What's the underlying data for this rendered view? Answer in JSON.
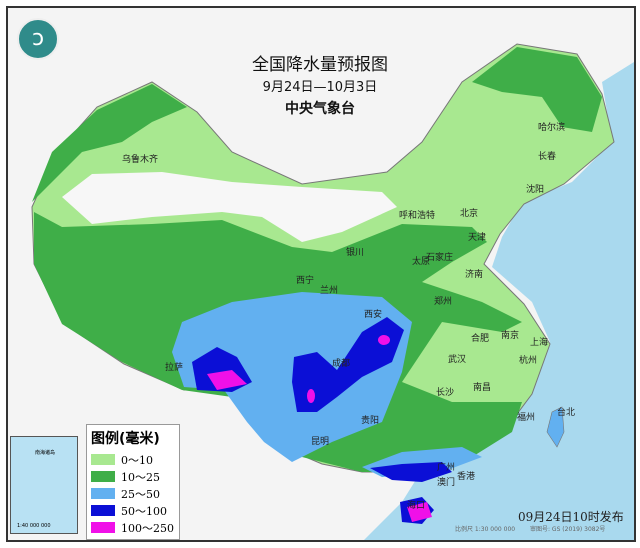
{
  "header": {
    "title": "全国降水量预报图",
    "date_range": "9月24日—10月3日",
    "issuer": "中央气象台"
  },
  "logo": {
    "icon": "cma-logo-icon",
    "glyph": "ↄ"
  },
  "legend": {
    "title": "图例(毫米)",
    "items": [
      {
        "label": "0～10",
        "color": "#a8e890"
      },
      {
        "label": "10～25",
        "color": "#3fae48"
      },
      {
        "label": "25～50",
        "color": "#62b0f0"
      },
      {
        "label": "50～100",
        "color": "#0b0fd6"
      },
      {
        "label": "100～250",
        "color": "#f010e8"
      }
    ]
  },
  "inset": {
    "label": "南海诸岛",
    "scale": "1:40 000 000"
  },
  "footer": {
    "published": "09月24日10时发布",
    "scale": "比例尺 1:30 000 000",
    "approval": "审图号: GS (2019) 3082号"
  },
  "cities": [
    "乌鲁木齐",
    "哈尔滨",
    "长春",
    "沈阳",
    "呼和浩特",
    "北京",
    "天津",
    "银川",
    "石家庄",
    "太原",
    "济南",
    "西宁",
    "兰州",
    "郑州",
    "西安",
    "成都",
    "合肥",
    "南京",
    "上海",
    "武汉",
    "杭州",
    "拉萨",
    "长沙",
    "南昌",
    "贵阳",
    "福州",
    "台北",
    "昆明",
    "广州",
    "香港",
    "澳门",
    "海口"
  ]
}
